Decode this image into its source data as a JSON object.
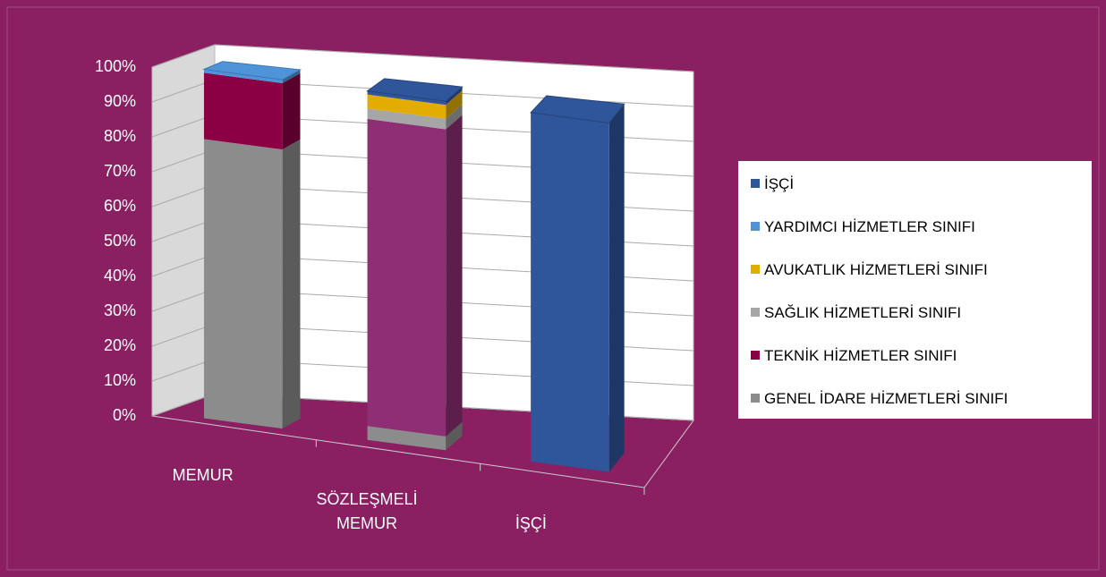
{
  "chart_data": {
    "type": "bar3d_stacked_percent",
    "categories": [
      "MEMUR",
      "SÖZLEŞMELİ MEMUR",
      "İŞÇİ"
    ],
    "series": [
      {
        "name": "GENEL İDARE HİZMETLERİ SINIFI",
        "color": "#8c8c8c",
        "values": [
          80,
          4,
          0
        ]
      },
      {
        "name": "TEKNİK HİZMETLER SINIFI",
        "color": "#8b0045",
        "point_colors": [
          "#8b0045",
          "#8e2f75",
          "#8b0045"
        ],
        "values": [
          19,
          88,
          0
        ]
      },
      {
        "name": "SAĞLIK HİZMETLERİ SINIFI",
        "color": "#a6a6a6",
        "values": [
          0,
          3,
          0
        ]
      },
      {
        "name": "AVUKATLIK HİZMETLERİ SINIFI",
        "color": "#e3ac00",
        "values": [
          0,
          4,
          0
        ]
      },
      {
        "name": "YARDIMCI HİZMETLER SINIFI",
        "color": "#4f94d8",
        "values": [
          1,
          0,
          0
        ]
      },
      {
        "name": "İŞÇİ",
        "color": "#2f559b",
        "values": [
          0,
          1,
          100
        ]
      }
    ],
    "ylim": [
      0,
      100
    ],
    "yticks": [
      {
        "value": 0,
        "label": "0%"
      },
      {
        "value": 10,
        "label": "10%"
      },
      {
        "value": 20,
        "label": "20%"
      },
      {
        "value": 30,
        "label": "30%"
      },
      {
        "value": 40,
        "label": "40%"
      },
      {
        "value": 50,
        "label": "50%"
      },
      {
        "value": 60,
        "label": "60%"
      },
      {
        "value": 70,
        "label": "70%"
      },
      {
        "value": 80,
        "label": "80%"
      },
      {
        "value": 90,
        "label": "90%"
      },
      {
        "value": 100,
        "label": "100%"
      }
    ],
    "grid": true,
    "legend": "right",
    "legend_order": "reverse"
  }
}
